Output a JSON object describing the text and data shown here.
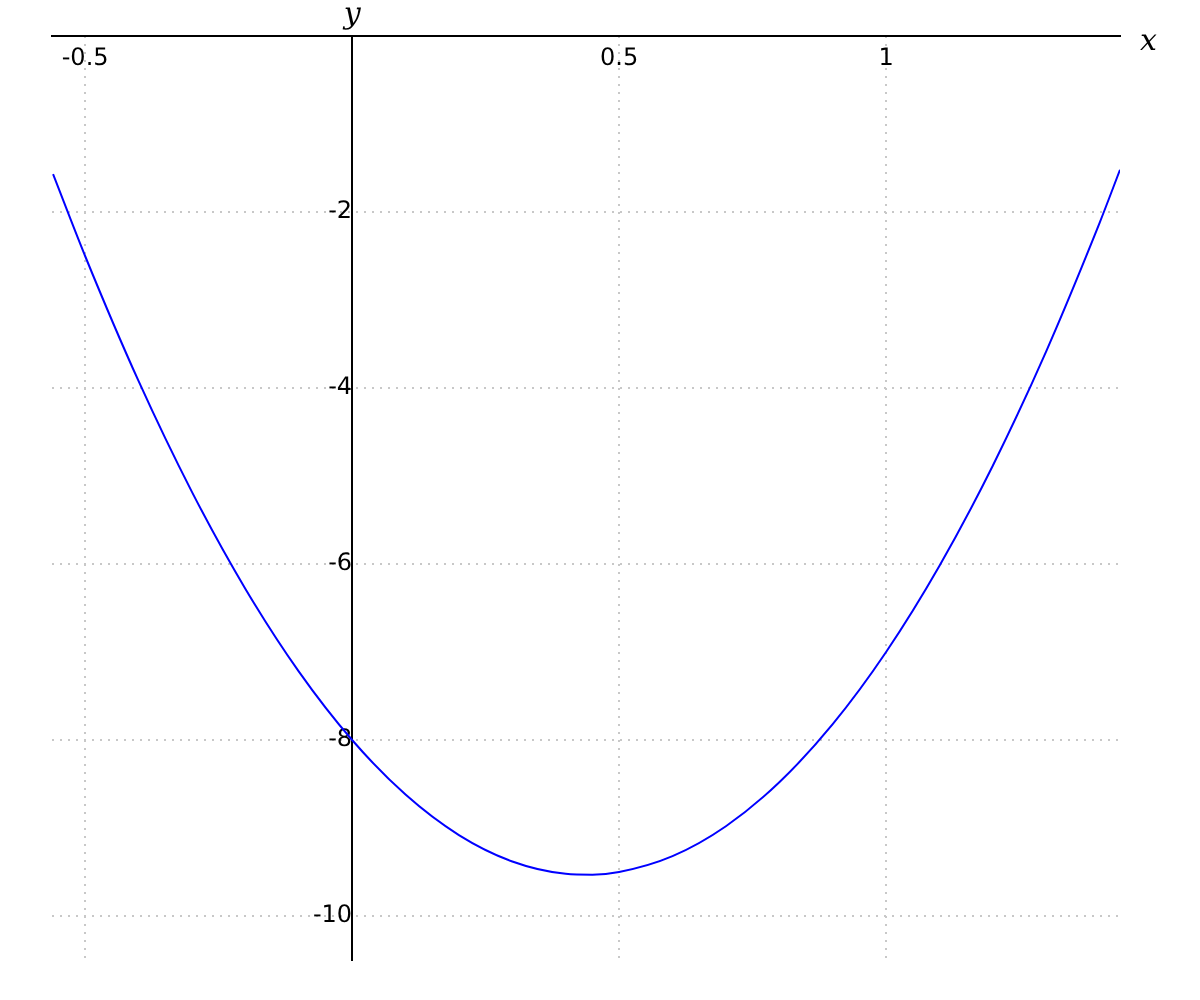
{
  "chart_data": {
    "type": "line",
    "xlabel": "x",
    "ylabel": "y",
    "x": [
      -0.56,
      -0.5,
      -0.4,
      -0.3,
      -0.2,
      -0.1,
      0,
      0.1,
      0.2,
      0.3,
      0.4,
      0.45,
      0.5,
      0.6,
      0.7,
      0.8,
      0.9,
      1.0,
      1.1,
      1.2,
      1.3,
      1.4,
      1.438
    ],
    "series": [
      {
        "color": "#0000ff",
        "values": [
          -1.57,
          -2.5,
          -3.92,
          -5.18,
          -6.28,
          -7.22,
          -8,
          -8.62,
          -9.08,
          -9.38,
          -9.52,
          -9.53,
          -9.5,
          -9.32,
          -8.98,
          -8.48,
          -7.82,
          -7,
          -6.02,
          -4.88,
          -3.58,
          -2.12,
          -1.52
        ]
      }
    ],
    "xlim": [
      -0.562,
      1.438
    ],
    "ylim": [
      -10.5,
      0
    ],
    "xticks": [
      -0.5,
      0.5,
      1
    ],
    "yticks": [
      -10,
      -8,
      -6,
      -4,
      -2
    ],
    "grid": true,
    "marker": "none"
  }
}
